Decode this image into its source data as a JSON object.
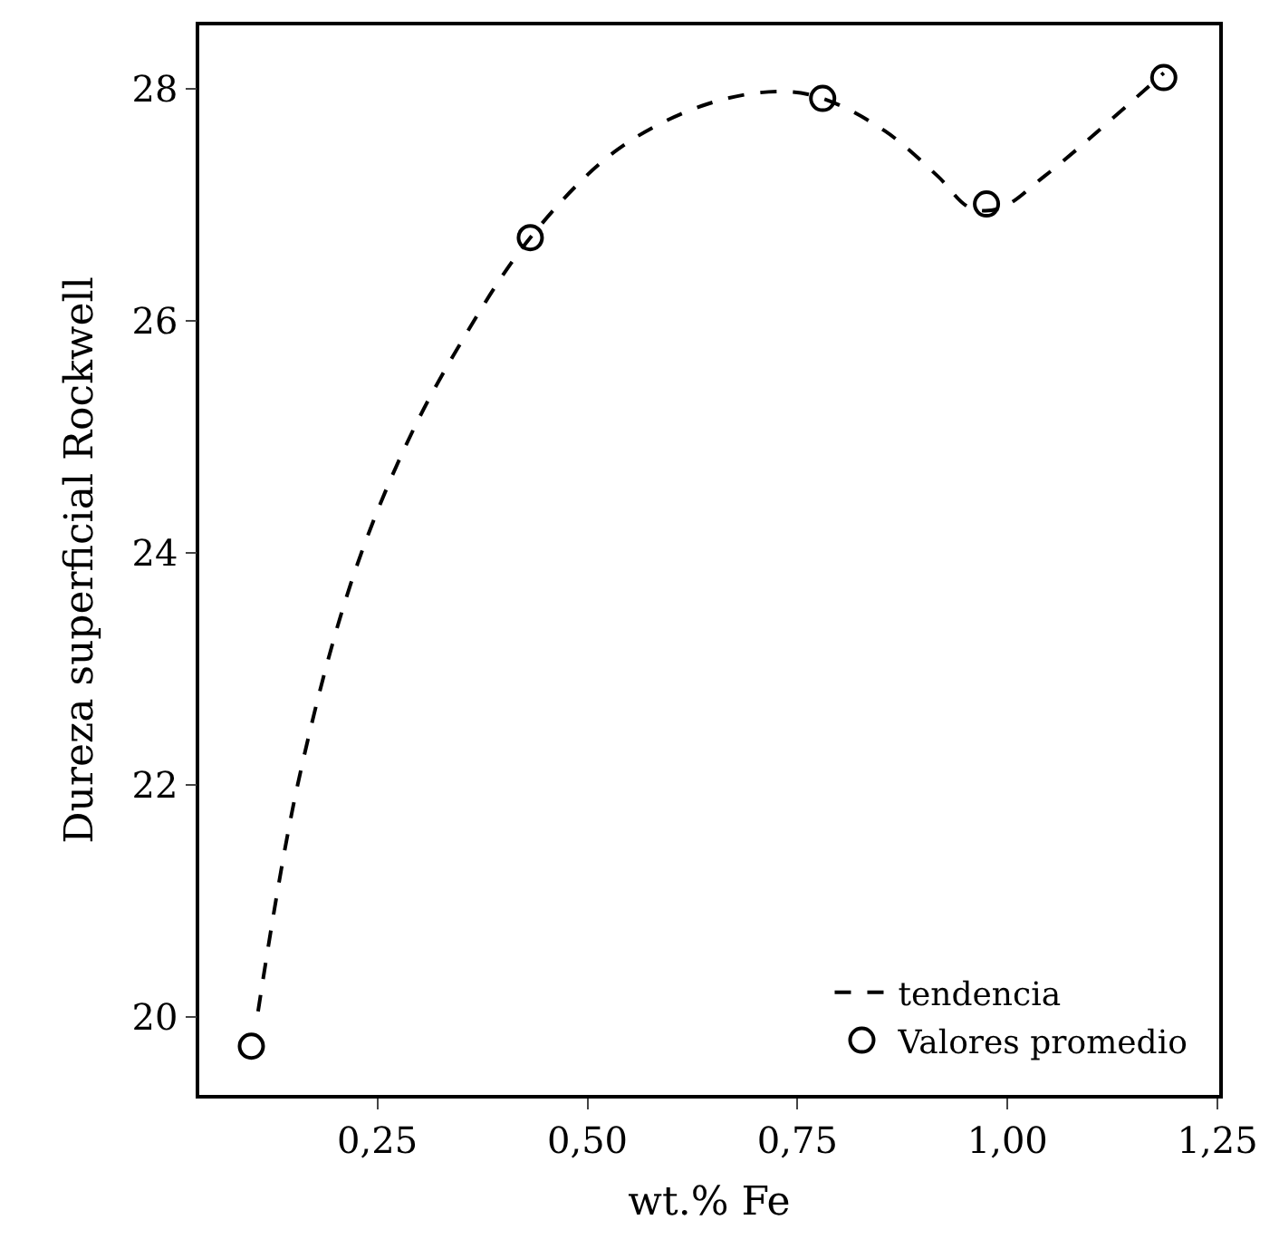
{
  "chart_data": {
    "type": "line",
    "xlabel": "wt.% Fe",
    "ylabel": "Dureza superficial Rockwell",
    "xlim": [
      0.038,
      1.252
    ],
    "ylim": [
      19.33,
      28.55
    ],
    "xticks": [
      {
        "value": 0.25,
        "label": "0,25"
      },
      {
        "value": 0.5,
        "label": "0,50"
      },
      {
        "value": 0.75,
        "label": "0,75"
      },
      {
        "value": 1.0,
        "label": "1,00"
      },
      {
        "value": 1.25,
        "label": "1,25"
      }
    ],
    "yticks": [
      20,
      22,
      24,
      26,
      28
    ],
    "legend": "bottom right",
    "series": [
      {
        "name": "tendencia",
        "line_style": "dashed",
        "marker": "none",
        "color": "#000000",
        "x": [
          0.108,
          0.155,
          0.218,
          0.282,
          0.345,
          0.432,
          0.536,
          0.642,
          0.727,
          0.78,
          0.854,
          0.917,
          0.955,
          0.99,
          1.044,
          1.108,
          1.186
        ],
        "values": [
          20.05,
          22.0,
          23.73,
          24.9,
          25.76,
          26.72,
          27.48,
          27.87,
          27.98,
          27.92,
          27.64,
          27.25,
          26.98,
          26.97,
          27.25,
          27.64,
          28.14
        ]
      },
      {
        "name": "Valores promedio",
        "type": "scatter",
        "marker": "circle",
        "color": "#000000",
        "x": [
          0.1,
          0.432,
          0.78,
          0.975,
          1.186
        ],
        "values": [
          19.75,
          26.72,
          27.92,
          27.01,
          28.1
        ]
      }
    ]
  }
}
